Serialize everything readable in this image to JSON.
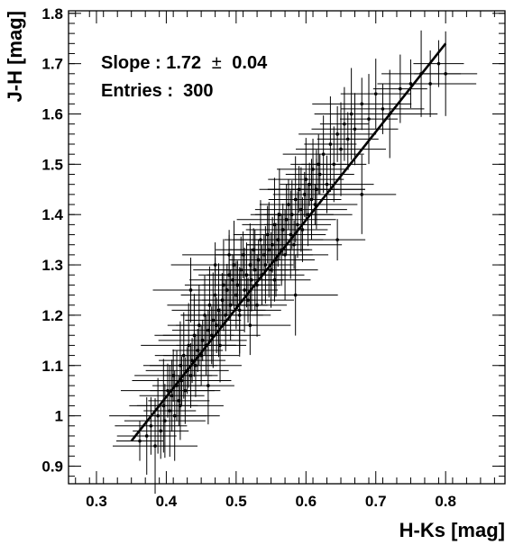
{
  "chart_data": {
    "type": "scatter",
    "title": "",
    "xlabel": "H-Ks [mag]",
    "ylabel": "J-H [mag]",
    "xlim": [
      0.26,
      0.885
    ],
    "ylim": [
      0.865,
      1.805
    ],
    "xticks": [
      0.3,
      0.4,
      0.5,
      0.6,
      0.7,
      0.8
    ],
    "xtick_labels": [
      "0.3",
      "0.4",
      "0.5",
      "0.6",
      "0.7",
      "0.8"
    ],
    "yticks": [
      0.9,
      1.0,
      1.1,
      1.2,
      1.3,
      1.4,
      1.5,
      1.6,
      1.7,
      1.8
    ],
    "ytick_labels": [
      "0.9",
      "1",
      "1.1",
      "1.2",
      "1.3",
      "1.4",
      "1.5",
      "1.6",
      "1.7",
      "1.8"
    ],
    "grid": false,
    "legend": "none",
    "annotations": {
      "slope_label": "Slope : 1.72",
      "slope_pm": "±",
      "slope_err": "0.04",
      "entries": "Entries :  300"
    },
    "fit_line": {
      "slope": 1.72,
      "slope_error": 0.04,
      "x": [
        0.35,
        0.8
      ],
      "y": [
        0.95,
        1.74
      ]
    },
    "series": [
      {
        "x": [
          0.362,
          0.372,
          0.378,
          0.384,
          0.388,
          0.392,
          0.396,
          0.398,
          0.402,
          0.405,
          0.408,
          0.41,
          0.412,
          0.415,
          0.418,
          0.42,
          0.42,
          0.422,
          0.425,
          0.427,
          0.43,
          0.432,
          0.435,
          0.437,
          0.44,
          0.442,
          0.445,
          0.447,
          0.45,
          0.452,
          0.455,
          0.457,
          0.46,
          0.462,
          0.465,
          0.467,
          0.47,
          0.472,
          0.475,
          0.477,
          0.48,
          0.482,
          0.485,
          0.487,
          0.49,
          0.492,
          0.495,
          0.497,
          0.5,
          0.502,
          0.505,
          0.507,
          0.51,
          0.512,
          0.515,
          0.517,
          0.52,
          0.522,
          0.525,
          0.527,
          0.53,
          0.532,
          0.535,
          0.537,
          0.54,
          0.542,
          0.545,
          0.547,
          0.55,
          0.552,
          0.555,
          0.557,
          0.56,
          0.562,
          0.565,
          0.567,
          0.57,
          0.572,
          0.575,
          0.578,
          0.58,
          0.583,
          0.585,
          0.588,
          0.59,
          0.593,
          0.595,
          0.598,
          0.6,
          0.603,
          0.605,
          0.608,
          0.61,
          0.613,
          0.615,
          0.618,
          0.62,
          0.625,
          0.63,
          0.635,
          0.64,
          0.645,
          0.65,
          0.655,
          0.66,
          0.665,
          0.67,
          0.68,
          0.69,
          0.7,
          0.71,
          0.72,
          0.735,
          0.75,
          0.765,
          0.778,
          0.79,
          0.8,
          0.435,
          0.47,
          0.505,
          0.53,
          0.555,
          0.585,
          0.615,
          0.645,
          0.68,
          0.52,
          0.49,
          0.46
        ],
        "y": [
          0.95,
          0.96,
          0.98,
          0.94,
          1.0,
          0.97,
          1.02,
          0.99,
          1.05,
          1.01,
          1.04,
          1.08,
          1.0,
          1.06,
          1.03,
          1.1,
          1.02,
          1.07,
          1.12,
          1.05,
          1.09,
          1.14,
          1.08,
          1.11,
          1.16,
          1.1,
          1.13,
          1.18,
          1.12,
          1.15,
          1.2,
          1.14,
          1.17,
          1.22,
          1.16,
          1.19,
          1.24,
          1.18,
          1.21,
          1.14,
          1.23,
          1.26,
          1.2,
          1.25,
          1.28,
          1.22,
          1.27,
          1.3,
          1.24,
          1.26,
          1.21,
          1.29,
          1.32,
          1.25,
          1.28,
          1.23,
          1.3,
          1.27,
          1.33,
          1.29,
          1.26,
          1.31,
          1.35,
          1.28,
          1.32,
          1.3,
          1.36,
          1.33,
          1.29,
          1.34,
          1.38,
          1.31,
          1.35,
          1.4,
          1.33,
          1.37,
          1.32,
          1.39,
          1.42,
          1.36,
          1.4,
          1.34,
          1.43,
          1.38,
          1.45,
          1.41,
          1.37,
          1.44,
          1.47,
          1.4,
          1.46,
          1.43,
          1.49,
          1.42,
          1.45,
          1.5,
          1.48,
          1.52,
          1.46,
          1.54,
          1.5,
          1.56,
          1.53,
          1.58,
          1.55,
          1.6,
          1.57,
          1.62,
          1.59,
          1.64,
          1.61,
          1.6,
          1.65,
          1.66,
          1.68,
          1.66,
          1.7,
          1.68,
          1.25,
          1.3,
          1.2,
          1.22,
          1.27,
          1.24,
          1.45,
          1.35,
          1.44,
          1.18,
          1.32,
          1.06
        ]
      }
    ]
  }
}
